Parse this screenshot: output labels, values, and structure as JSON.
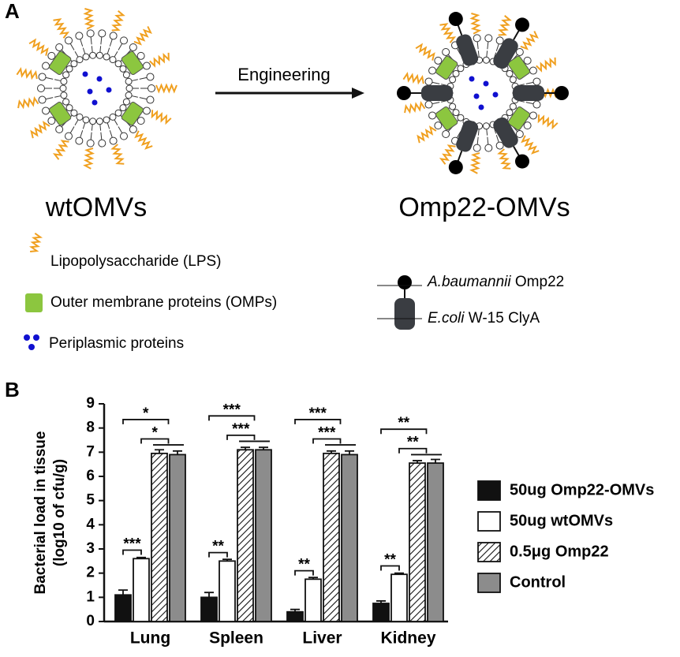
{
  "panel_a": {
    "label": "A",
    "arrow_label": "Engineering",
    "left_name": "wtOMVs",
    "right_name": "Omp22-OMVs",
    "legend": [
      "Lipopolysaccharide (LPS)",
      "Outer membrane proteins (OMPs)",
      "Periplasmic proteins"
    ],
    "key": [
      {
        "italic": "A.baumannii",
        "text": " Omp22"
      },
      {
        "italic": "E.coli",
        "text": " W-15 ClyA"
      }
    ]
  },
  "panel_b": {
    "label": "B"
  },
  "chart_data": {
    "type": "bar",
    "ylabel": [
      "Bacterial load in tissue",
      "(log10 of cfu/g)"
    ],
    "categories": [
      "Lung",
      "Spleen",
      "Liver",
      "Kidney"
    ],
    "series": [
      {
        "name": "50ug Omp22-OMVs",
        "color": "#111111",
        "values": [
          1.1,
          1.0,
          0.4,
          0.75
        ],
        "errors": [
          0.2,
          0.2,
          0.1,
          0.1
        ]
      },
      {
        "name": "50ug wtOMVs",
        "color": "#ffffff",
        "values": [
          2.6,
          2.5,
          1.75,
          1.95
        ],
        "errors": [
          0.05,
          0.07,
          0.07,
          0.05
        ]
      },
      {
        "name": "0.5μg Omp22",
        "color": "#ffffff",
        "hatch": true,
        "values": [
          6.95,
          7.1,
          6.95,
          6.55
        ],
        "errors": [
          0.15,
          0.1,
          0.1,
          0.1
        ]
      },
      {
        "name": "Control",
        "color": "#8c8c8c",
        "values": [
          6.9,
          7.1,
          6.9,
          6.55
        ],
        "errors": [
          0.15,
          0.1,
          0.15,
          0.15
        ]
      }
    ],
    "annotations": [
      [
        "***",
        "*",
        "*"
      ],
      [
        "**",
        "***",
        "***"
      ],
      [
        "**",
        "***",
        "***"
      ],
      [
        "**",
        "**",
        "**"
      ]
    ],
    "ylim": [
      0,
      9
    ],
    "yticks": [
      0,
      1,
      2,
      3,
      4,
      5,
      6,
      7,
      8,
      9
    ]
  }
}
